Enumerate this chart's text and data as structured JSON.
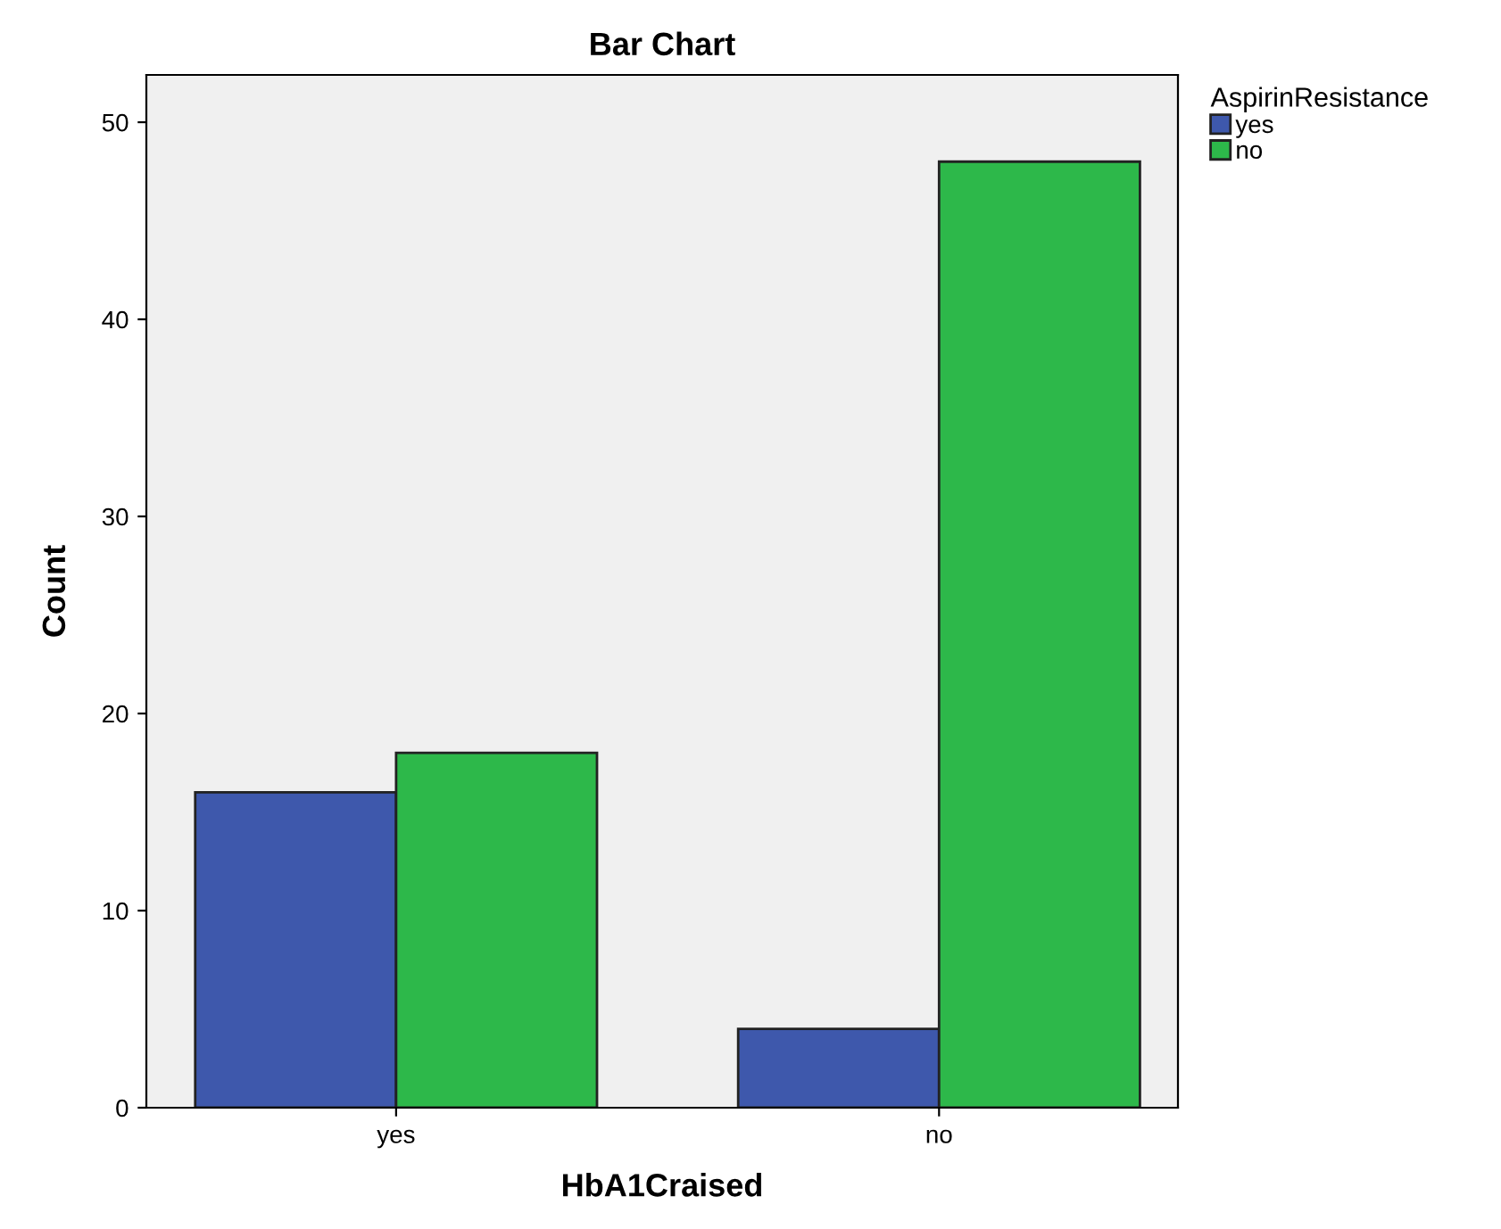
{
  "chart_data": {
    "type": "bar",
    "title": "Bar Chart",
    "xlabel": "HbA1Craised",
    "ylabel": "Count",
    "legend_title": "AspirinResistance",
    "categories": [
      "yes",
      "no"
    ],
    "series": [
      {
        "name": "yes",
        "color": "#3e58ac",
        "values": [
          16,
          4
        ]
      },
      {
        "name": "no",
        "color": "#2db84a",
        "values": [
          18,
          48
        ]
      }
    ],
    "ylim": [
      0,
      52.4
    ],
    "yticks": [
      0,
      10,
      20,
      30,
      40,
      50
    ],
    "grid": false,
    "legend": "top right"
  }
}
